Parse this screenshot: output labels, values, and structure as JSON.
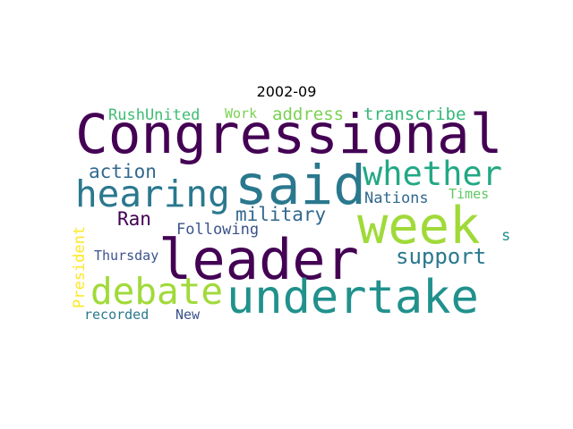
{
  "title": "2002-09",
  "words": [
    {
      "text": "Congressional",
      "color": "#440154"
    },
    {
      "text": "said",
      "color": "#2a788e"
    },
    {
      "text": "week",
      "color": "#a0da39"
    },
    {
      "text": "leader",
      "color": "#440154"
    },
    {
      "text": "undertake",
      "color": "#21918c"
    },
    {
      "text": "hearing",
      "color": "#2a788e"
    },
    {
      "text": "whether",
      "color": "#22a884"
    },
    {
      "text": "debate",
      "color": "#a0da39"
    },
    {
      "text": "military",
      "color": "#31688e"
    },
    {
      "text": "support",
      "color": "#2a788e"
    },
    {
      "text": "action",
      "color": "#31688e"
    },
    {
      "text": "Ran",
      "color": "#440154"
    },
    {
      "text": "Following",
      "color": "#3b528b"
    },
    {
      "text": "RushUnited",
      "color": "#3fbc73"
    },
    {
      "text": "Work",
      "color": "#7ad151"
    },
    {
      "text": "address",
      "color": "#7ad151"
    },
    {
      "text": "transcribe",
      "color": "#35b779"
    },
    {
      "text": "Nations",
      "color": "#31688e"
    },
    {
      "text": "Times",
      "color": "#5ec962"
    },
    {
      "text": "Thursday",
      "color": "#3b528b"
    },
    {
      "text": "President",
      "color": "#fde725"
    },
    {
      "text": "recorded",
      "color": "#2a788e"
    },
    {
      "text": "New",
      "color": "#3b528b"
    },
    {
      "text": "s",
      "color": "#21918c"
    }
  ]
}
